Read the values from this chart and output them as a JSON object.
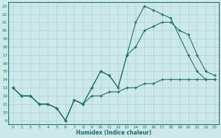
{
  "xlabel": "Humidex (Indice chaleur)",
  "bg_color": "#cde8e8",
  "line_color": "#1a6b6b",
  "grid_color": "#b0d0d0",
  "xlim": [
    0,
    23
  ],
  "ylim": [
    9,
    23
  ],
  "xticks": [
    0,
    1,
    2,
    3,
    4,
    5,
    6,
    7,
    8,
    9,
    10,
    11,
    12,
    13,
    14,
    15,
    16,
    17,
    18,
    19,
    20,
    21,
    22,
    23
  ],
  "yticks": [
    9,
    10,
    11,
    12,
    13,
    14,
    15,
    16,
    17,
    18,
    19,
    20,
    21,
    22,
    23
  ],
  "line1_x": [
    0,
    1,
    2,
    3,
    4,
    5,
    6,
    7,
    8,
    9,
    10,
    11,
    12,
    13,
    14,
    15,
    16,
    17,
    18,
    20,
    21,
    22,
    23
  ],
  "line1_y": [
    13,
    12,
    12,
    11,
    11,
    10.5,
    9,
    11.5,
    11,
    13,
    15,
    14.5,
    13,
    17,
    21,
    23,
    22.5,
    22,
    21.5,
    17,
    15,
    14,
    14
  ],
  "line2_x": [
    0,
    1,
    2,
    3,
    4,
    5,
    6,
    7,
    8,
    9,
    10,
    11,
    12,
    13,
    14,
    15,
    16,
    17,
    18,
    19,
    20,
    21,
    22,
    23
  ],
  "line2_y": [
    13,
    12,
    12,
    11,
    11,
    10.5,
    9,
    11.5,
    11,
    13,
    15,
    14.5,
    13,
    17,
    18,
    20,
    20.5,
    21,
    21,
    20,
    19.5,
    17,
    15,
    14.5
  ],
  "line3_x": [
    0,
    1,
    2,
    3,
    4,
    5,
    6,
    7,
    8,
    9,
    10,
    11,
    12,
    13,
    14,
    15,
    16,
    17,
    18,
    19,
    20,
    21,
    22,
    23
  ],
  "line3_y": [
    13,
    12,
    12,
    11,
    11,
    10.5,
    9,
    11.5,
    11,
    12,
    12,
    12.5,
    12.5,
    13,
    13,
    13.5,
    13.5,
    14,
    14,
    14,
    14,
    14,
    14,
    14
  ]
}
